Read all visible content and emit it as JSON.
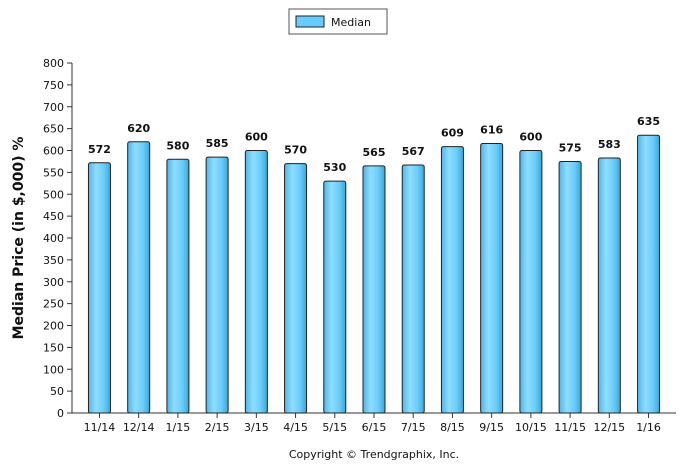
{
  "chart_data": {
    "type": "bar",
    "title": "",
    "xlabel": "",
    "ylabel": "Median Price (in $,000) %",
    "ylim": [
      0,
      800
    ],
    "ytick_step": 50,
    "grid": false,
    "legend_position": "top-center",
    "categories": [
      "11/14",
      "12/14",
      "1/15",
      "2/15",
      "3/15",
      "4/15",
      "5/15",
      "6/15",
      "7/15",
      "8/15",
      "9/15",
      "10/15",
      "11/15",
      "12/15",
      "1/16"
    ],
    "series": [
      {
        "name": "Median",
        "color": "#66ccff",
        "values": [
          572,
          620,
          580,
          585,
          600,
          570,
          530,
          565,
          567,
          609,
          616,
          600,
          575,
          583,
          635
        ]
      }
    ],
    "data_labels": [
      "572",
      "620",
      "580",
      "585",
      "600",
      "570",
      "530",
      "565",
      "567",
      "609",
      "616",
      "600",
      "575",
      "583",
      "635"
    ]
  },
  "copyright": "Copyright © Trendgraphix, Inc."
}
